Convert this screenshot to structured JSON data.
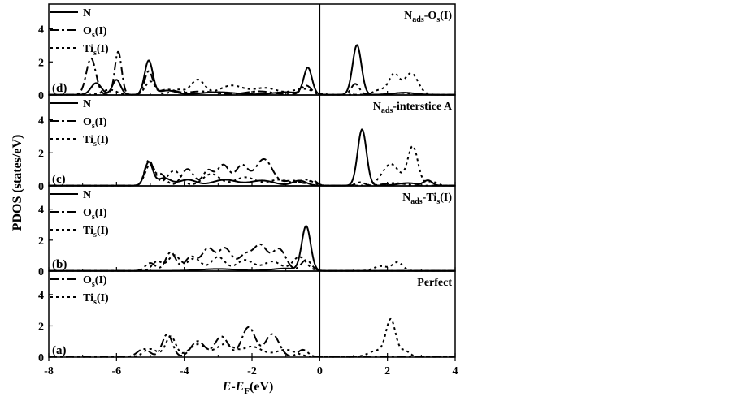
{
  "xlabel": {
    "italic": "E",
    "mid": "-",
    "italic2": "E",
    "sub": "F",
    "tail": "(eV)"
  },
  "ylabel": "PDOS (states/eV)",
  "chart_data": {
    "type": "line",
    "xlim": [
      -8,
      4
    ],
    "xticks": [
      -8,
      -6,
      -4,
      -2,
      0,
      2,
      4
    ],
    "fermi_level_x": 0,
    "grid": false,
    "panels": [
      {
        "tag": "(d)",
        "title": {
          "main": "N",
          "sub1": "ads",
          "mid": "-O",
          "sub2": "s",
          "tail": "(I)"
        },
        "ylim": [
          0,
          5.5
        ],
        "yticks": [
          0,
          2,
          4
        ],
        "legend": [
          {
            "main": "N",
            "sub": "",
            "tail": "",
            "style": "solid"
          },
          {
            "main": "O",
            "sub": "s",
            "tail": "(I)",
            "style": "dashdot"
          },
          {
            "main": "Ti",
            "sub": "s",
            "tail": "(I)",
            "style": "dotted"
          }
        ],
        "series": [
          {
            "style": "solid",
            "baseline": 0.02,
            "peaks": [
              [
                -6.6,
                0.7,
                0.15
              ],
              [
                -6.0,
                0.9,
                0.12
              ],
              [
                -5.05,
                2.05,
                0.12
              ],
              [
                -4.5,
                0.25,
                0.25
              ],
              [
                -3.0,
                0.15,
                0.5
              ],
              [
                -1.0,
                0.15,
                0.4
              ],
              [
                -0.35,
                1.6,
                0.12
              ],
              [
                1.1,
                3.0,
                0.13
              ],
              [
                2.5,
                0.12,
                0.3
              ]
            ]
          },
          {
            "style": "dashdot",
            "baseline": 0.02,
            "peaks": [
              [
                -6.75,
                2.2,
                0.14
              ],
              [
                -5.95,
                2.6,
                0.1
              ],
              [
                -5.05,
                1.4,
                0.12
              ],
              [
                -4.5,
                0.3,
                0.25
              ],
              [
                -3.5,
                0.2,
                0.4
              ],
              [
                -1.8,
                0.2,
                0.4
              ],
              [
                -0.4,
                0.55,
                0.15
              ],
              [
                1.05,
                0.65,
                0.12
              ],
              [
                2.4,
                0.1,
                0.3
              ]
            ]
          },
          {
            "style": "dotted",
            "baseline": 0.02,
            "peaks": [
              [
                -6.2,
                0.3,
                0.2
              ],
              [
                -5.0,
                0.8,
                0.15
              ],
              [
                -4.2,
                0.3,
                0.2
              ],
              [
                -3.6,
                0.9,
                0.2
              ],
              [
                -2.6,
                0.55,
                0.35
              ],
              [
                -1.6,
                0.4,
                0.35
              ],
              [
                -0.5,
                0.35,
                0.3
              ],
              [
                1.8,
                0.3,
                0.2
              ],
              [
                2.2,
                1.2,
                0.15
              ],
              [
                2.7,
                1.3,
                0.2
              ]
            ]
          }
        ]
      },
      {
        "tag": "(c)",
        "title": {
          "main": "N",
          "sub1": "ads",
          "mid": "-interstice A",
          "sub2": "",
          "tail": ""
        },
        "ylim": [
          0,
          5.5
        ],
        "yticks": [
          0,
          2,
          4
        ],
        "legend": [
          {
            "main": "N",
            "sub": "",
            "tail": "",
            "style": "solid"
          },
          {
            "main": "O",
            "sub": "s",
            "tail": "(I)",
            "style": "dashdot"
          },
          {
            "main": "Ti",
            "sub": "s",
            "tail": "(I)",
            "style": "dotted"
          }
        ],
        "series": [
          {
            "style": "solid",
            "baseline": 0.02,
            "peaks": [
              [
                -5.05,
                1.4,
                0.12
              ],
              [
                -4.6,
                0.45,
                0.2
              ],
              [
                -3.9,
                0.35,
                0.25
              ],
              [
                -2.8,
                0.35,
                0.35
              ],
              [
                -1.7,
                0.3,
                0.35
              ],
              [
                -0.6,
                0.3,
                0.2
              ],
              [
                1.25,
                3.4,
                0.13
              ],
              [
                2.6,
                0.15,
                0.3
              ],
              [
                3.2,
                0.3,
                0.12
              ]
            ]
          },
          {
            "style": "dashdot",
            "baseline": 0.02,
            "peaks": [
              [
                -5.05,
                1.5,
                0.12
              ],
              [
                -4.7,
                0.7,
                0.15
              ],
              [
                -3.9,
                1.0,
                0.18
              ],
              [
                -3.3,
                0.9,
                0.15
              ],
              [
                -2.85,
                1.25,
                0.18
              ],
              [
                -2.3,
                1.2,
                0.18
              ],
              [
                -1.65,
                1.6,
                0.25
              ],
              [
                -0.8,
                0.3,
                0.25
              ],
              [
                -0.2,
                0.3,
                0.12
              ],
              [
                1.2,
                0.2,
                0.12
              ],
              [
                2.2,
                0.15,
                0.3
              ]
            ]
          },
          {
            "style": "dotted",
            "baseline": 0.02,
            "peaks": [
              [
                -5.0,
                1.3,
                0.15
              ],
              [
                -4.3,
                0.9,
                0.2
              ],
              [
                -3.2,
                0.7,
                0.25
              ],
              [
                -2.2,
                0.5,
                0.3
              ],
              [
                -1.2,
                0.35,
                0.3
              ],
              [
                -0.4,
                0.35,
                0.2
              ],
              [
                2.1,
                1.3,
                0.25
              ],
              [
                2.75,
                2.35,
                0.15
              ],
              [
                3.3,
                0.25,
                0.15
              ]
            ]
          }
        ]
      },
      {
        "tag": "(b)",
        "title": {
          "main": "N",
          "sub1": "ads",
          "mid": "-Ti",
          "sub2": "s",
          "tail": "(I)"
        },
        "ylim": [
          0,
          5.5
        ],
        "yticks": [
          0,
          2,
          4
        ],
        "legend": [
          {
            "main": "N",
            "sub": "",
            "tail": "",
            "style": "solid"
          },
          {
            "main": "O",
            "sub": "s",
            "tail": "(I)",
            "style": "dashdot"
          },
          {
            "main": "Ti",
            "sub": "s",
            "tail": "(I)",
            "style": "dotted"
          }
        ],
        "series": [
          {
            "style": "solid",
            "baseline": 0.02,
            "peaks": [
              [
                -3.0,
                0.12,
                0.5
              ],
              [
                -1.0,
                0.15,
                0.4
              ],
              [
                -0.4,
                2.85,
                0.13
              ]
            ]
          },
          {
            "style": "dashdot",
            "baseline": 0.02,
            "peaks": [
              [
                -5.0,
                0.5,
                0.15
              ],
              [
                -4.4,
                1.2,
                0.15
              ],
              [
                -3.8,
                0.9,
                0.18
              ],
              [
                -3.3,
                1.4,
                0.18
              ],
              [
                -2.8,
                1.45,
                0.2
              ],
              [
                -2.2,
                1.0,
                0.2
              ],
              [
                -1.75,
                1.6,
                0.2
              ],
              [
                -1.2,
                1.4,
                0.2
              ],
              [
                -0.4,
                0.7,
                0.15
              ]
            ]
          },
          {
            "style": "dotted",
            "baseline": 0.02,
            "peaks": [
              [
                -4.8,
                0.6,
                0.15
              ],
              [
                -4.3,
                1.0,
                0.18
              ],
              [
                -3.7,
                0.8,
                0.2
              ],
              [
                -3.0,
                0.9,
                0.2
              ],
              [
                -2.2,
                0.7,
                0.25
              ],
              [
                -1.4,
                0.6,
                0.25
              ],
              [
                -0.6,
                0.9,
                0.2
              ],
              [
                1.8,
                0.3,
                0.2
              ],
              [
                2.3,
                0.55,
                0.15
              ]
            ]
          }
        ]
      },
      {
        "tag": "(a)",
        "title": {
          "main": "Perfect",
          "sub1": "",
          "mid": "",
          "sub2": "",
          "tail": ""
        },
        "ylim": [
          0,
          5.5
        ],
        "yticks": [
          0,
          2,
          4
        ],
        "legend": [
          {
            "main": "O",
            "sub": "s",
            "tail": "(I)",
            "style": "dashdot"
          },
          {
            "main": "Ti",
            "sub": "s",
            "tail": "(I)",
            "style": "dotted"
          }
        ],
        "series": [
          {
            "style": "dashdot",
            "baseline": 0.02,
            "peaks": [
              [
                -5.2,
                0.5,
                0.18
              ],
              [
                -4.5,
                1.45,
                0.15
              ],
              [
                -3.6,
                1.0,
                0.2
              ],
              [
                -2.9,
                1.3,
                0.2
              ],
              [
                -2.1,
                1.9,
                0.2
              ],
              [
                -1.4,
                1.45,
                0.2
              ],
              [
                -0.5,
                0.45,
                0.15
              ]
            ]
          },
          {
            "style": "dotted",
            "baseline": 0.02,
            "peaks": [
              [
                -5.0,
                0.5,
                0.2
              ],
              [
                -4.4,
                1.3,
                0.15
              ],
              [
                -3.6,
                0.8,
                0.25
              ],
              [
                -2.8,
                0.8,
                0.25
              ],
              [
                -2.0,
                0.65,
                0.3
              ],
              [
                -1.0,
                0.45,
                0.3
              ],
              [
                1.7,
                0.4,
                0.25
              ],
              [
                2.1,
                2.3,
                0.14
              ],
              [
                2.5,
                0.4,
                0.15
              ]
            ]
          }
        ]
      }
    ]
  }
}
